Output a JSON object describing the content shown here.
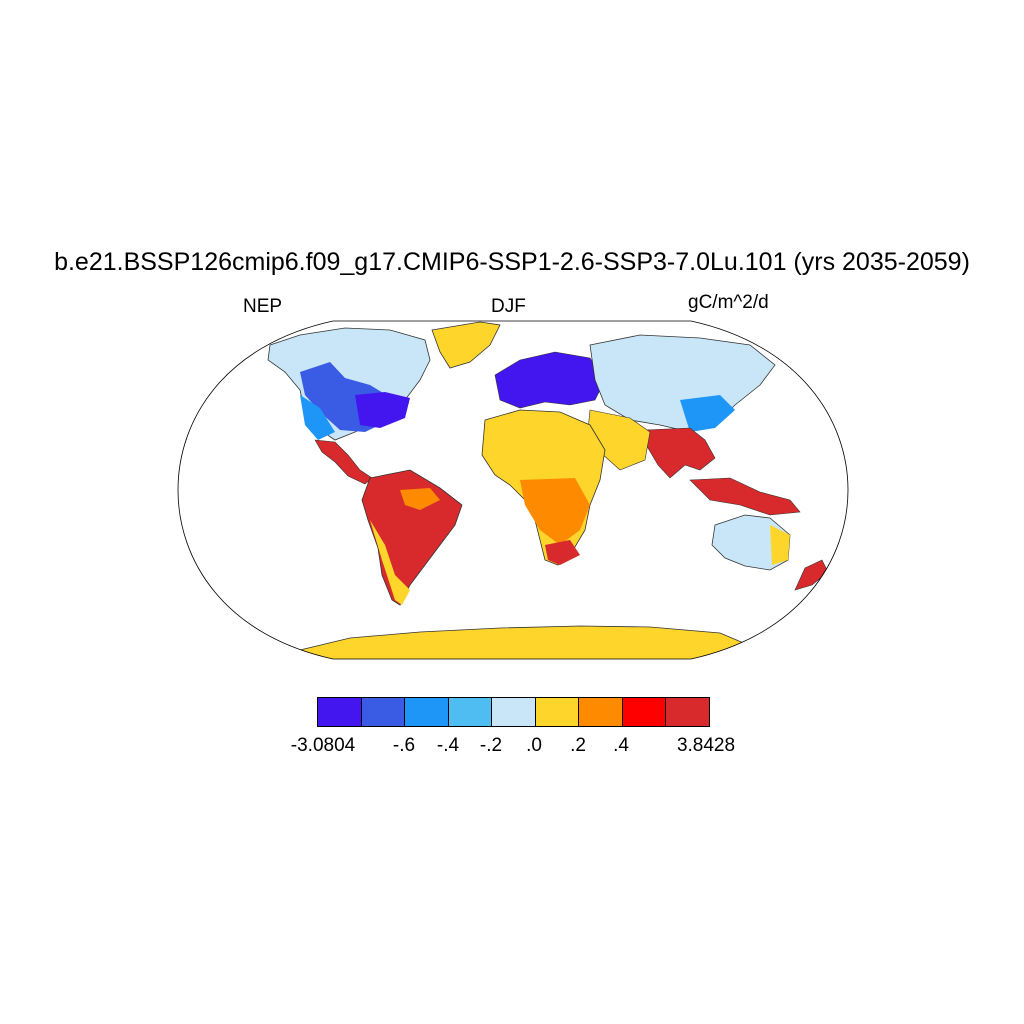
{
  "title": "b.e21.BSSP126cmip6.f09_g17.CMIP6-SSP1-2.6-SSP3-7.0Lu.101 (yrs 2035-2059)",
  "left_label": "NEP",
  "center_label": "DJF",
  "right_label": "gC/m^2/d",
  "colorbar": {
    "colors": [
      "#4316f0",
      "#3a5ce4",
      "#1e96f8",
      "#50bdf2",
      "#c8e6f8",
      "#fed52a",
      "#fe8a00",
      "#fe0000",
      "#d82a2c"
    ],
    "labels": [
      "-3.0804",
      "-.6",
      "-.4",
      "-.2",
      ".0",
      ".2",
      ".4",
      "3.8428"
    ]
  }
}
